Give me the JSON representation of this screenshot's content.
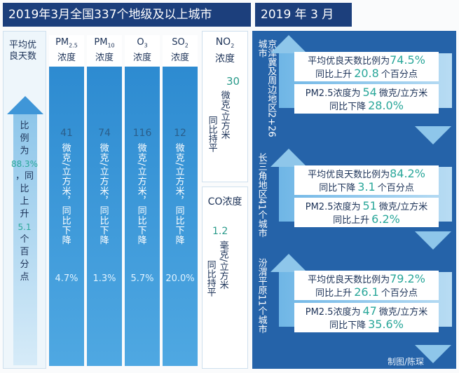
{
  "left": {
    "header": "2019年3月全国337个地级及以上城市",
    "good_days": {
      "title": "平均优良天数",
      "lines": [
        "比",
        "例",
        "为",
        "88.3%",
        "，同",
        "比",
        "上",
        "升",
        "5.1",
        "个",
        "百",
        "分",
        "点"
      ]
    },
    "pollutants": [
      {
        "name": "PM2.5",
        "base": "PM",
        "sub": "2.5",
        "suffix": "浓度",
        "value": "41",
        "unit": "微克/立方米，同比下降",
        "change": "4.7%"
      },
      {
        "name": "PM10",
        "base": "PM",
        "sub": "10",
        "suffix": "浓度",
        "value": "74",
        "unit": "微克/立方米，同比下降",
        "change": "1.3%"
      },
      {
        "name": "O3",
        "base": "O",
        "sub": "3",
        "suffix": "浓度",
        "value": "116",
        "unit": "微克/立方米，同比下降",
        "change": "5.7%"
      },
      {
        "name": "SO2",
        "base": "SO",
        "sub": "2",
        "suffix": "浓度",
        "value": "12",
        "unit": "微克/立方米，同比下降",
        "change": "20.0%"
      }
    ],
    "no2": {
      "base": "NO",
      "sub": "2",
      "suffix": "浓度",
      "value": "30",
      "unit": "微克/立方米",
      "change": "同比持平"
    },
    "co": {
      "title": "CO浓度",
      "value": "1.2",
      "unit": "毫克/立方米",
      "change": "同比持平"
    }
  },
  "right": {
    "header": "2019 年 3 月",
    "regions": [
      {
        "region": "京津冀及周边地区2+26城市",
        "good_text": "平均优良天数比例为",
        "good_value": "74.5%",
        "good_change_text": "同比上升",
        "good_change_value": "20.8",
        "good_change_unit": "个百分点",
        "pm_label": "PM2.5浓度为",
        "pm_value": "54",
        "pm_unit": "微克/立方米",
        "pm_change_text": "同比下降",
        "pm_change_value": "28.0%"
      },
      {
        "region": "长三角地区41个城市",
        "good_text": "平均优良天数比例为",
        "good_value": "84.2%",
        "good_change_text": "同比下降",
        "good_change_value": "3.1",
        "good_change_unit": "个百分点",
        "pm_label": "PM2.5浓度为",
        "pm_value": "51",
        "pm_unit": "微克/立方米",
        "pm_change_text": "同比上升",
        "pm_change_value": "6.2%"
      },
      {
        "region": "汾渭平原11个城市",
        "good_text": "平均优良天数比例为",
        "good_value": "79.2%",
        "good_change_text": "同比上升",
        "good_change_value": "26.1",
        "good_change_unit": "个百分点",
        "pm_label": "PM2.5浓度为",
        "pm_value": "47",
        "pm_unit": "微克/立方米",
        "pm_change_text": "同比下降",
        "pm_change_value": "35.6%"
      }
    ],
    "credit": "制图/陈琛"
  },
  "colors": {
    "navy": "#1c3f7c",
    "blue": "#3f96d8",
    "teal": "#2aa79a"
  }
}
